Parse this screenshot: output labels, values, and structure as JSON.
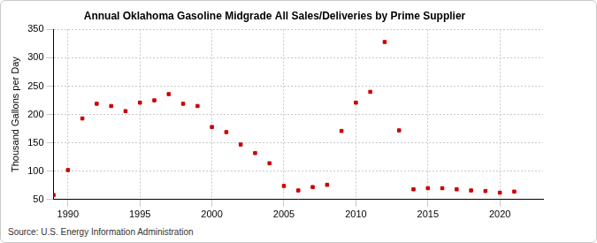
{
  "chart_data": {
    "type": "scatter",
    "title": "Annual Oklahoma Gasoline Midgrade All Sales/Deliveries by Prime Supplier",
    "y_label": "Thousand Gallons per Day",
    "source": "Source: U.S. Energy Information Administration",
    "x": [
      1989,
      1990,
      1991,
      1992,
      1993,
      1994,
      1995,
      1996,
      1997,
      1998,
      1999,
      2000,
      2001,
      2002,
      2003,
      2004,
      2005,
      2006,
      2007,
      2008,
      2009,
      2010,
      2011,
      2012,
      2013,
      2014,
      2015,
      2016,
      2017,
      2018,
      2019,
      2020,
      2021
    ],
    "values": [
      58,
      102,
      193,
      219,
      215,
      206,
      221,
      225,
      236,
      219,
      215,
      178,
      169,
      147,
      132,
      114,
      74,
      66,
      72,
      76,
      171,
      221,
      240,
      328,
      172,
      68,
      70,
      70,
      68,
      66,
      65,
      62,
      64
    ],
    "color": "#cc0000",
    "marker": "square",
    "xlim": [
      1989,
      2023
    ],
    "xticks": [
      1990,
      1995,
      2000,
      2005,
      2010,
      2015,
      2020
    ],
    "ylim": [
      50,
      350
    ],
    "yticks": [
      50,
      100,
      150,
      200,
      250,
      300,
      350
    ],
    "grid": true
  }
}
